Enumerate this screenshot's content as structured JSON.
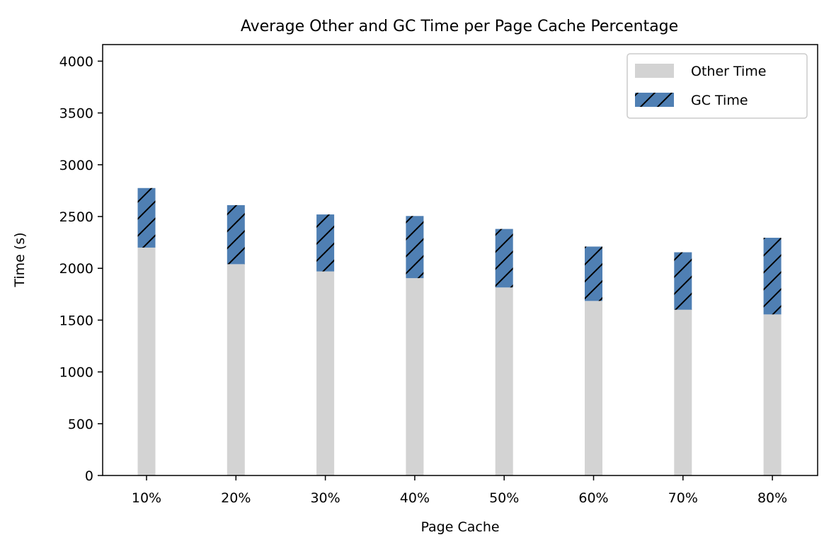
{
  "chart_data": {
    "type": "bar",
    "stacked": true,
    "title": "Average Other and GC Time per Page Cache Percentage",
    "xlabel": "Page Cache",
    "ylabel": "Time (s)",
    "categories": [
      "10%",
      "20%",
      "30%",
      "40%",
      "50%",
      "60%",
      "70%",
      "80%"
    ],
    "series": [
      {
        "name": "Other Time",
        "values": [
          2200,
          2040,
          1970,
          1905,
          1815,
          1685,
          1600,
          1555
        ],
        "color": "#d3d3d3",
        "hatch": false
      },
      {
        "name": "GC Time",
        "values": [
          575,
          570,
          550,
          600,
          565,
          525,
          555,
          740
        ],
        "color": "#4f7fb3",
        "hatch": true
      }
    ],
    "ylim": [
      0,
      4160
    ],
    "yticks": [
      0,
      500,
      1000,
      1500,
      2000,
      2500,
      3000,
      3500,
      4000
    ],
    "grid": false,
    "legend": {
      "position": "top-right"
    }
  }
}
